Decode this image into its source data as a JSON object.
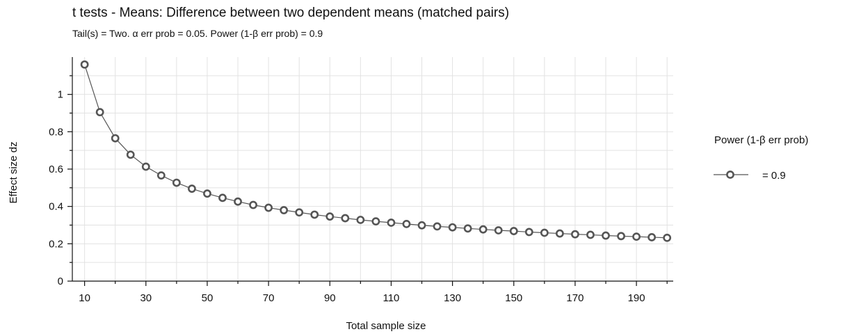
{
  "chart_data": {
    "type": "line",
    "title": "t tests - Means: Difference between two dependent means (matched pairs)",
    "subtitle": "Tail(s) = Two. α err prob = 0.05. Power (1-β err prob) = 0.9",
    "xlabel": "Total sample size",
    "ylabel": "Effect size dz",
    "xlim": [
      6,
      202
    ],
    "ylim": [
      0,
      1.2
    ],
    "x_ticks_major": [
      10,
      30,
      50,
      70,
      90,
      110,
      130,
      150,
      170,
      190
    ],
    "x_ticks_minor": [
      20,
      40,
      60,
      80,
      100,
      120,
      140,
      160,
      180,
      200
    ],
    "y_ticks_major": [
      0,
      0.2,
      0.4,
      0.6,
      0.8,
      1
    ],
    "y_ticks_major_labels": [
      "0",
      "0.2",
      "0.4",
      "0.6",
      "0.8",
      "1"
    ],
    "y_ticks_minor": [
      0.1,
      0.3,
      0.5,
      0.7,
      0.9,
      1.1
    ],
    "grid": true,
    "legend": {
      "title": "Power (1-β err prob)",
      "placement": "right"
    },
    "series": [
      {
        "name": "= 0.9",
        "color": "#555555",
        "marker": "circle",
        "x": [
          10,
          15,
          20,
          25,
          30,
          35,
          40,
          45,
          50,
          55,
          60,
          65,
          70,
          75,
          80,
          85,
          90,
          95,
          100,
          105,
          110,
          115,
          120,
          125,
          130,
          135,
          140,
          145,
          150,
          155,
          160,
          165,
          170,
          175,
          180,
          185,
          190,
          195,
          200
        ],
        "y": [
          1.16,
          0.905,
          0.765,
          0.677,
          0.613,
          0.566,
          0.527,
          0.495,
          0.469,
          0.446,
          0.426,
          0.408,
          0.393,
          0.38,
          0.368,
          0.356,
          0.346,
          0.337,
          0.328,
          0.32,
          0.313,
          0.306,
          0.299,
          0.293,
          0.288,
          0.282,
          0.277,
          0.272,
          0.268,
          0.263,
          0.259,
          0.255,
          0.251,
          0.248,
          0.244,
          0.241,
          0.238,
          0.235,
          0.232
        ]
      }
    ]
  }
}
